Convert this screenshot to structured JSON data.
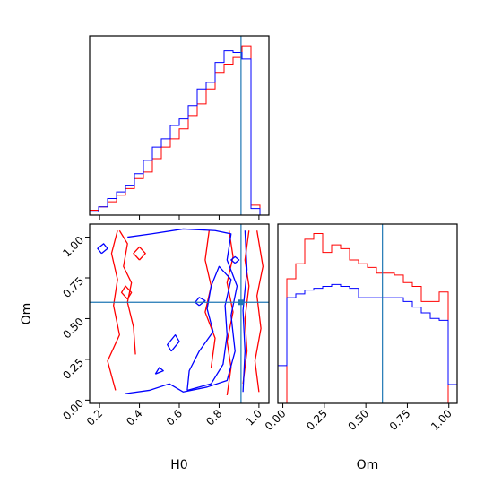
{
  "chart_data": [
    {
      "type": "histogram",
      "panel": "H0 marginal",
      "xlim": [
        0.15,
        1.05
      ],
      "bin_edges": [
        0.15,
        0.195,
        0.24,
        0.285,
        0.33,
        0.375,
        0.42,
        0.465,
        0.51,
        0.555,
        0.6,
        0.645,
        0.69,
        0.735,
        0.78,
        0.825,
        0.87,
        0.915,
        0.96,
        1.005,
        1.05
      ],
      "series": [
        {
          "color": "#ff0000",
          "values": [
            0.3,
            0.5,
            0.8,
            1.2,
            1.6,
            2.2,
            2.6,
            3.4,
            4.1,
            4.6,
            5.2,
            6.0,
            6.7,
            7.6,
            8.6,
            9.1,
            9.5,
            10.2,
            0.6,
            0.0
          ]
        },
        {
          "color": "#0000ff",
          "values": [
            0.2,
            0.5,
            1.0,
            1.4,
            1.8,
            2.5,
            3.3,
            4.1,
            4.6,
            5.4,
            5.8,
            6.6,
            7.6,
            8.0,
            9.2,
            9.9,
            9.8,
            9.4,
            0.4,
            0.0
          ]
        }
      ],
      "truth_line": {
        "x": 0.91,
        "color": "#1f77b4"
      }
    },
    {
      "type": "contour",
      "panel": "H0 vs Om",
      "xlabel": "H0",
      "ylabel": "Om",
      "xlim": [
        0.15,
        1.05
      ],
      "ylim": [
        -0.02,
        1.08
      ],
      "x_ticks": [
        "0.2",
        "0.4",
        "0.6",
        "0.8",
        "1.0"
      ],
      "y_ticks": [
        "0.00",
        "0.25",
        "0.50",
        "0.75",
        "1.00"
      ],
      "series": [
        {
          "color": "#ff0000",
          "contours": [
            [
              [
                0.38,
                0.28
              ],
              [
                0.37,
                0.45
              ],
              [
                0.34,
                0.6
              ],
              [
                0.36,
                0.72
              ],
              [
                0.32,
                0.82
              ],
              [
                0.34,
                0.96
              ],
              [
                0.3,
                1.04
              ]
            ],
            [
              [
                0.28,
                0.06
              ],
              [
                0.24,
                0.24
              ],
              [
                0.3,
                0.4
              ],
              [
                0.27,
                0.58
              ],
              [
                0.29,
                0.74
              ],
              [
                0.26,
                0.9
              ],
              [
                0.29,
                1.04
              ]
            ],
            [
              [
                0.84,
                0.03
              ],
              [
                0.86,
                0.2
              ],
              [
                0.84,
                0.36
              ],
              [
                0.87,
                0.54
              ],
              [
                0.84,
                0.72
              ],
              [
                0.87,
                0.88
              ],
              [
                0.85,
                1.04
              ]
            ],
            [
              [
                0.76,
                0.2
              ],
              [
                0.78,
                0.38
              ],
              [
                0.73,
                0.54
              ],
              [
                0.76,
                0.7
              ],
              [
                0.73,
                0.86
              ],
              [
                0.75,
                1.04
              ]
            ],
            [
              [
                1.0,
                0.05
              ],
              [
                0.98,
                0.24
              ],
              [
                1.01,
                0.44
              ],
              [
                0.99,
                0.64
              ],
              [
                1.02,
                0.82
              ],
              [
                0.99,
                1.04
              ]
            ],
            [
              [
                0.92,
                0.1
              ],
              [
                0.94,
                0.3
              ],
              [
                0.93,
                0.5
              ],
              [
                0.95,
                0.7
              ],
              [
                0.93,
                0.86
              ],
              [
                0.95,
                1.04
              ]
            ],
            [
              [
                0.34,
                0.62
              ],
              [
                0.36,
                0.66
              ],
              [
                0.33,
                0.7
              ],
              [
                0.31,
                0.66
              ],
              [
                0.34,
                0.62
              ]
            ],
            [
              [
                0.4,
                0.86
              ],
              [
                0.43,
                0.9
              ],
              [
                0.4,
                0.94
              ],
              [
                0.37,
                0.9
              ],
              [
                0.4,
                0.86
              ]
            ]
          ]
        },
        {
          "color": "#0000ff",
          "contours": [
            [
              [
                0.33,
                0.04
              ],
              [
                0.45,
                0.06
              ],
              [
                0.55,
                0.1
              ],
              [
                0.62,
                0.05
              ],
              [
                0.74,
                0.08
              ],
              [
                0.84,
                0.12
              ],
              [
                0.88,
                0.3
              ],
              [
                0.86,
                0.52
              ],
              [
                0.89,
                0.7
              ],
              [
                0.84,
                0.86
              ],
              [
                0.86,
                1.02
              ],
              [
                0.78,
                1.04
              ],
              [
                0.62,
                1.05
              ],
              [
                0.46,
                1.02
              ],
              [
                0.34,
                1.0
              ]
            ],
            [
              [
                0.64,
                0.06
              ],
              [
                0.76,
                0.1
              ],
              [
                0.82,
                0.22
              ],
              [
                0.84,
                0.4
              ],
              [
                0.83,
                0.58
              ],
              [
                0.86,
                0.74
              ],
              [
                0.8,
                0.82
              ],
              [
                0.76,
                0.7
              ],
              [
                0.74,
                0.56
              ],
              [
                0.77,
                0.42
              ],
              [
                0.7,
                0.3
              ],
              [
                0.65,
                0.18
              ],
              [
                0.64,
                0.06
              ]
            ],
            [
              [
                0.92,
                0.05
              ],
              [
                0.93,
                0.3
              ],
              [
                0.92,
                0.55
              ],
              [
                0.94,
                0.8
              ],
              [
                0.93,
                1.04
              ]
            ],
            [
              [
                0.56,
                0.3
              ],
              [
                0.6,
                0.36
              ],
              [
                0.58,
                0.4
              ],
              [
                0.54,
                0.34
              ],
              [
                0.56,
                0.3
              ]
            ],
            [
              [
                0.48,
                0.16
              ],
              [
                0.52,
                0.18
              ],
              [
                0.5,
                0.2
              ],
              [
                0.48,
                0.16
              ]
            ],
            [
              [
                0.7,
                0.58
              ],
              [
                0.73,
                0.61
              ],
              [
                0.7,
                0.63
              ],
              [
                0.68,
                0.6
              ],
              [
                0.7,
                0.58
              ]
            ],
            [
              [
                0.21,
                0.9
              ],
              [
                0.24,
                0.93
              ],
              [
                0.22,
                0.96
              ],
              [
                0.19,
                0.93
              ],
              [
                0.21,
                0.9
              ]
            ],
            [
              [
                0.88,
                0.84
              ],
              [
                0.9,
                0.86
              ],
              [
                0.88,
                0.88
              ],
              [
                0.86,
                0.86
              ],
              [
                0.88,
                0.84
              ]
            ]
          ]
        }
      ],
      "truth_lines": {
        "x": 0.91,
        "y": 0.6,
        "color": "#1f77b4"
      },
      "truth_point": {
        "x": 0.91,
        "y": 0.6
      }
    },
    {
      "type": "histogram",
      "panel": "Om marginal",
      "xlabel": "Om",
      "xlim": [
        -0.03,
        1.05
      ],
      "x_ticks": [
        "0.00",
        "0.25",
        "0.50",
        "0.75",
        "1.00"
      ],
      "bin_edges": [
        -0.03,
        0.024,
        0.078,
        0.132,
        0.186,
        0.24,
        0.294,
        0.348,
        0.402,
        0.456,
        0.51,
        0.564,
        0.618,
        0.672,
        0.726,
        0.78,
        0.834,
        0.888,
        0.942,
        0.996,
        1.05
      ],
      "series": [
        {
          "color": "#ff0000",
          "values": [
            0.0,
            6.6,
            7.4,
            8.7,
            9.0,
            8.0,
            8.4,
            8.2,
            7.6,
            7.4,
            7.2,
            6.9,
            6.9,
            6.8,
            6.4,
            6.2,
            5.4,
            5.4,
            5.9,
            0.0
          ]
        },
        {
          "color": "#0000ff",
          "values": [
            2.0,
            5.6,
            5.8,
            6.0,
            6.1,
            6.2,
            6.3,
            6.2,
            6.1,
            5.6,
            5.6,
            5.6,
            5.6,
            5.6,
            5.4,
            5.1,
            4.8,
            4.5,
            4.4,
            1.0
          ]
        }
      ],
      "truth_line": {
        "x": 0.6,
        "color": "#1f77b4"
      }
    }
  ]
}
